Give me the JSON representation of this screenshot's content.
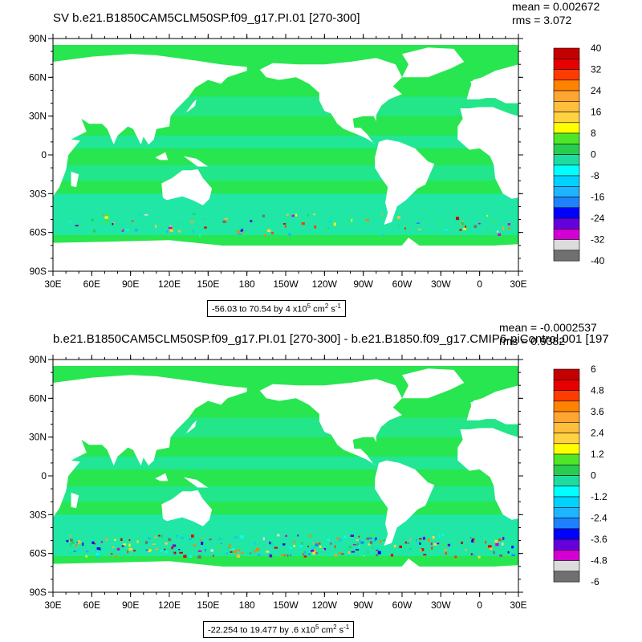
{
  "panels": [
    {
      "title": "SV b.e21.B1850CAM5CLM50SP.f09_g17.PI.01 [270-300]",
      "stats": {
        "mean": "mean = 0.002672",
        "rms": "rms = 3.072"
      },
      "range": {
        "text": "-56.03 to 70.54 by 4 x10",
        "exp": "5",
        "unit": " cm",
        "unit_exp": "2",
        "unit_tail": " s",
        "unit_tail_exp": "-1"
      },
      "colorbar": {
        "colors": [
          "#c40000",
          "#e60000",
          "#ff3c00",
          "#ff8200",
          "#ffa532",
          "#ffbe3c",
          "#ffd241",
          "#ffff00",
          "#50e628",
          "#28cd50",
          "#1edca0",
          "#00ffff",
          "#00d2ff",
          "#1eb4ff",
          "#1e82ff",
          "#0000ff",
          "#6400dc",
          "#d200d2",
          "#dcdcdc",
          "#707070"
        ],
        "labels": [
          "40",
          "32",
          "24",
          "16",
          "8",
          "0",
          "-8",
          "-16",
          "-24",
          "-32",
          "-40"
        ]
      }
    },
    {
      "title": "b.e21.B1850CAM5CLM50SP.f09_g17.PI.01 [270-300] - b.e21.B1850.f09_g17.CMIP6-piControl.001 [197",
      "stats": {
        "mean": "mean = -0.0002537",
        "rms": "rms = 0.9382"
      },
      "range": {
        "text": "-22.254 to 19.477 by .6 x10",
        "exp": "5",
        "unit": " cm",
        "unit_exp": "2",
        "unit_tail": " s",
        "unit_tail_exp": "-1"
      },
      "colorbar": {
        "colors": [
          "#c40000",
          "#e60000",
          "#ff3c00",
          "#ff8200",
          "#ffa532",
          "#ffbe3c",
          "#ffd241",
          "#ffff00",
          "#50e628",
          "#28cd50",
          "#1edca0",
          "#00ffff",
          "#00d2ff",
          "#1eb4ff",
          "#1e82ff",
          "#0000ff",
          "#6400dc",
          "#d200d2",
          "#dcdcdc",
          "#707070"
        ],
        "labels": [
          "6",
          "4.8",
          "3.6",
          "2.4",
          "1.2",
          "0",
          "-1.2",
          "-2.4",
          "-3.6",
          "-4.8",
          "-6"
        ]
      }
    }
  ],
  "lat_labels": [
    "90N",
    "60N",
    "30N",
    "0",
    "30S",
    "60S",
    "90S"
  ],
  "lon_labels": [
    "30E",
    "60E",
    "90E",
    "120E",
    "150E",
    "180",
    "150W",
    "120W",
    "90W",
    "60W",
    "30W",
    "0",
    "30E"
  ],
  "colors": {
    "ocean_main": "#28e650",
    "ocean_alt": "#1ee6b4",
    "land": "#ffffff"
  }
}
